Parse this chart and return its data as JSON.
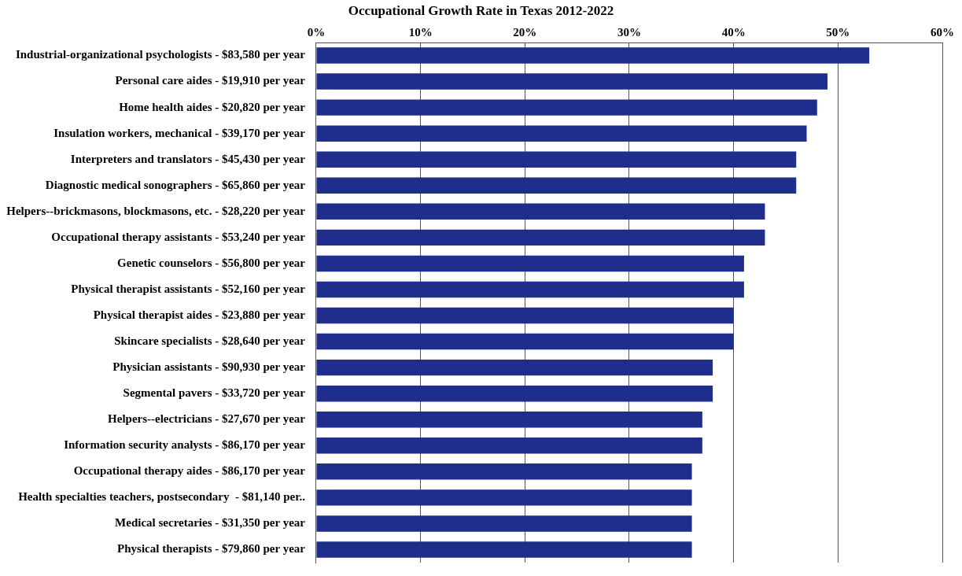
{
  "chart_data": {
    "type": "bar",
    "orientation": "horizontal",
    "title": "Occupational Growth Rate in Texas 2012-2022",
    "categories": [
      "Industrial-organizational psychologists - $83,580 per year",
      "Personal care aides - $19,910 per year",
      "Home health aides - $20,820 per year",
      "Insulation workers, mechanical - $39,170 per year",
      "Interpreters and translators - $45,430 per year",
      "Diagnostic medical sonographers - $65,860 per year",
      "Helpers--brickmasons, blockmasons, etc. - $28,220 per year",
      "Occupational therapy assistants - $53,240 per year",
      "Genetic counselors - $56,800 per year",
      "Physical therapist assistants - $52,160 per year",
      "Physical therapist aides - $23,880 per year",
      "Skincare specialists - $28,640 per year",
      "Physician assistants - $90,930 per year",
      "Segmental pavers - $33,720 per year",
      "Helpers--electricians - $27,670 per year",
      "Information security analysts - $86,170 per year",
      "Occupational therapy aides - $86,170 per year",
      "Health specialties teachers, postsecondary  - $81,140 per..",
      "Medical secretaries - $31,350 per year",
      "Physical therapists - $79,860 per year"
    ],
    "values": [
      53,
      49,
      48,
      47,
      46,
      46,
      43,
      43,
      41,
      41,
      40,
      40,
      38,
      38,
      37,
      37,
      36,
      36,
      36,
      36
    ],
    "color": "#1f2d8c",
    "xlim": [
      0,
      60
    ],
    "xticks": [
      {
        "value": 0,
        "label": "0%"
      },
      {
        "value": 10,
        "label": "10%"
      },
      {
        "value": 20,
        "label": "20%"
      },
      {
        "value": 30,
        "label": "30%"
      },
      {
        "value": 40,
        "label": "40%"
      },
      {
        "value": 50,
        "label": "50%"
      },
      {
        "value": 60,
        "label": "60%"
      }
    ],
    "grid": "x",
    "legend": false
  }
}
